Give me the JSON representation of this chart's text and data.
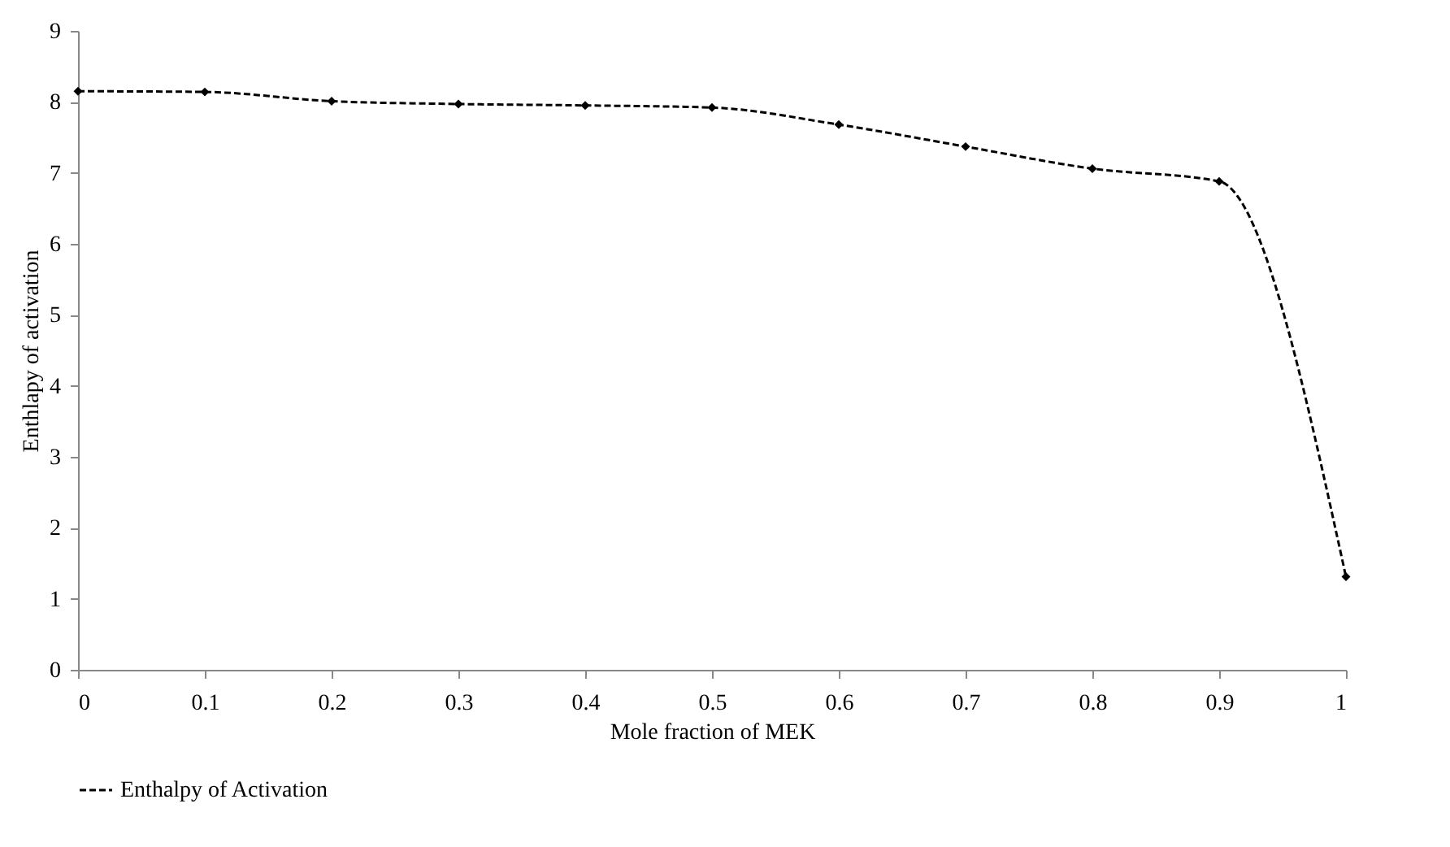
{
  "chart_data": {
    "type": "line",
    "xlabel": "Mole fraction of MEK",
    "ylabel": "Enthlapy of activation",
    "x": [
      0,
      0.1,
      0.2,
      0.3,
      0.4,
      0.5,
      0.6,
      0.7,
      0.8,
      0.9,
      1
    ],
    "series": [
      {
        "name": "Enthalpy of Activation",
        "color": "#000000",
        "values": [
          8.15,
          8.14,
          8.01,
          7.97,
          7.95,
          7.92,
          7.68,
          7.37,
          7.06,
          6.88,
          1.31
        ]
      }
    ],
    "xlim": [
      0,
      1
    ],
    "xticks": [
      0,
      0.1,
      0.2,
      0.3,
      0.4,
      0.5,
      0.6,
      0.7,
      0.8,
      0.9,
      1
    ],
    "ylim": [
      0,
      9
    ],
    "yticks": [
      0,
      1,
      2,
      3,
      4,
      5,
      6,
      7,
      8,
      9
    ],
    "grid": false,
    "legend": "bottom",
    "marker": "diamond",
    "line_style": "dashed"
  }
}
